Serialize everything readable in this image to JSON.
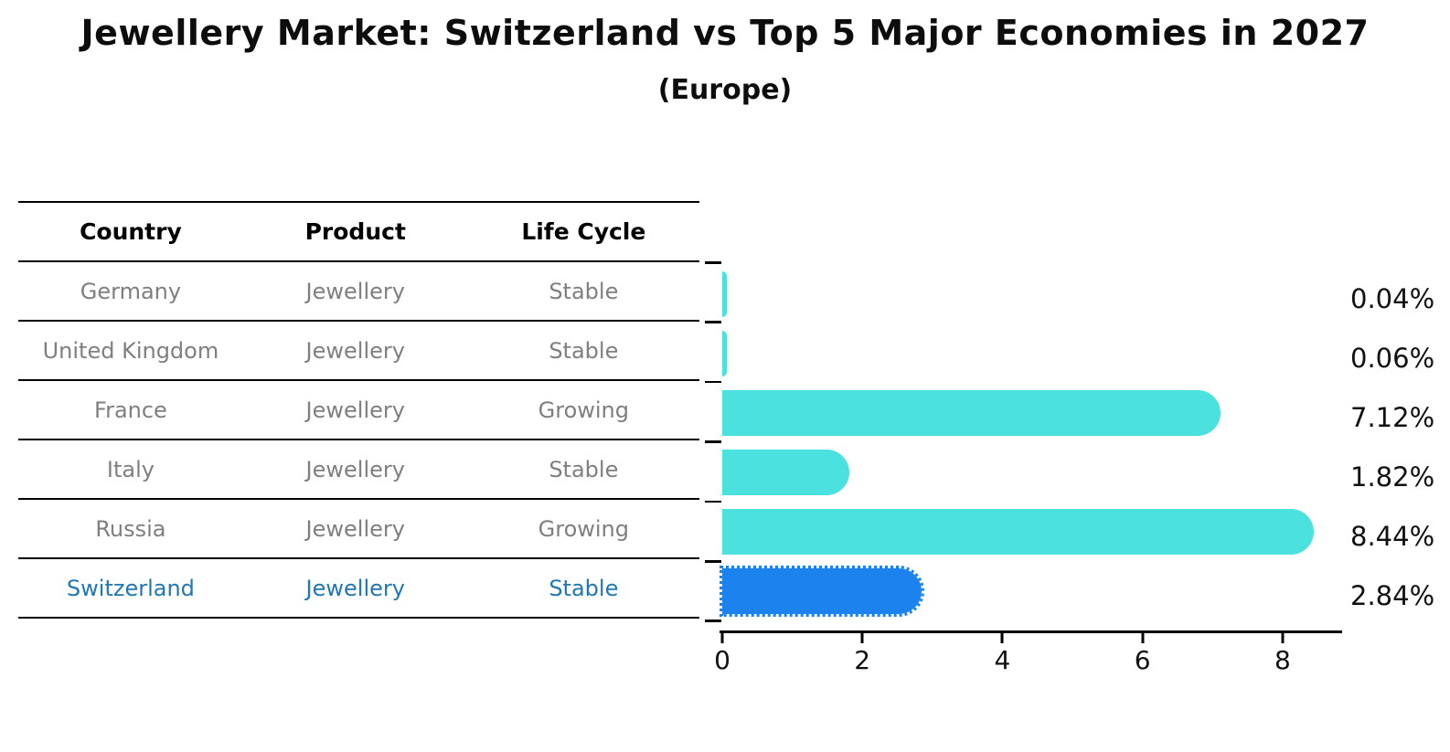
{
  "title": "Jewellery Market: Switzerland vs Top 5 Major Economies in 2027",
  "subtitle": "(Europe)",
  "table": {
    "headers": [
      "Country",
      "Product",
      "Life Cycle"
    ],
    "rows": [
      {
        "country": "Germany",
        "product": "Jewellery",
        "life_cycle": "Stable",
        "highlighted": false
      },
      {
        "country": "United Kingdom",
        "product": "Jewellery",
        "life_cycle": "Stable",
        "highlighted": false
      },
      {
        "country": "France",
        "product": "Jewellery",
        "life_cycle": "Growing",
        "highlighted": false
      },
      {
        "country": "Italy",
        "product": "Jewellery",
        "life_cycle": "Stable",
        "highlighted": false
      },
      {
        "country": "Russia",
        "product": "Jewellery",
        "life_cycle": "Growing",
        "highlighted": false
      },
      {
        "country": "Switzerland",
        "product": "Jewellery",
        "life_cycle": "Stable",
        "highlighted": true
      }
    ]
  },
  "chart_data": {
    "type": "bar",
    "orientation": "horizontal",
    "title": "Jewellery Market: Switzerland vs Top 5 Major Economies in 2027",
    "subtitle": "(Europe)",
    "categories": [
      "Germany",
      "United Kingdom",
      "France",
      "Italy",
      "Russia",
      "Switzerland"
    ],
    "values": [
      0.04,
      0.06,
      7.12,
      1.82,
      8.44,
      2.84
    ],
    "value_labels": [
      "0.04%",
      "0.06%",
      "7.12%",
      "1.82%",
      "8.44%",
      "2.84%"
    ],
    "x_ticks": [
      "0",
      "2",
      "4",
      "6",
      "8"
    ],
    "x_tick_values": [
      0,
      2,
      4,
      6,
      8
    ],
    "xlim": [
      0,
      8.85
    ],
    "grid": false,
    "legend": "none",
    "highlight_index": 5
  },
  "colors": {
    "bar": "#4ae1df",
    "highlight_bar": "#1b82ee",
    "highlight_text": "#1f77b4",
    "row_text": "#7f7f7f",
    "header_text": "#000000",
    "axis": "#000000",
    "value_label_text": "#111111"
  }
}
